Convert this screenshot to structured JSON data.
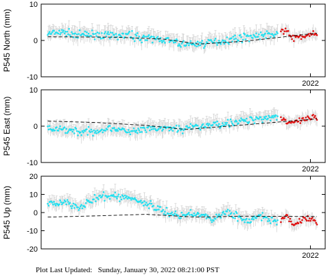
{
  "footer": {
    "label": "Plot Last Updated:",
    "value": "Sunday, January 30, 2022 08:21:00 PST"
  },
  "colors": {
    "data_points": "#22e0f0",
    "recent_points": "#e01010",
    "error_bars": "#d4d4d4",
    "trend_line": "#000000"
  },
  "chart_data": [
    {
      "type": "scatter",
      "ylabel": "P545 North (mm)",
      "ylim": [
        -10,
        10
      ],
      "yticks": [
        -10,
        0,
        10
      ],
      "x_tick_label": "2022",
      "series": [
        {
          "role": "observations",
          "x": [
            2014.0,
            2014.5,
            2015.0,
            2015.5,
            2016.0,
            2016.5,
            2017.0,
            2017.5,
            2018.0,
            2018.5,
            2019.0,
            2019.5,
            2020.0,
            2020.5,
            2021.0
          ],
          "y": [
            1.8,
            2.2,
            1.5,
            1.6,
            1.2,
            1.4,
            0.6,
            0.3,
            -0.9,
            -1.1,
            -0.5,
            0.2,
            0.9,
            1.4,
            2.0
          ]
        },
        {
          "role": "recent",
          "x": [
            2021.1,
            2021.3,
            2021.5,
            2021.8,
            2022.1,
            2022.2
          ],
          "y": [
            2.8,
            2.2,
            0.6,
            1.2,
            1.9,
            1.4
          ]
        },
        {
          "role": "trend",
          "x": [
            2014.0,
            2016.0,
            2017.5,
            2018.6,
            2020.0,
            2022.2
          ],
          "y": [
            1.0,
            0.9,
            0.4,
            -1.0,
            -0.2,
            2.0
          ]
        }
      ]
    },
    {
      "type": "scatter",
      "ylabel": "P545 East (mm)",
      "ylim": [
        -10,
        10
      ],
      "yticks": [
        -10,
        0,
        10
      ],
      "x_tick_label": "2022",
      "series": [
        {
          "role": "observations",
          "x": [
            2014.0,
            2014.5,
            2015.0,
            2015.5,
            2016.0,
            2016.5,
            2017.0,
            2017.5,
            2018.0,
            2018.5,
            2019.0,
            2019.5,
            2020.0,
            2020.5,
            2021.0
          ],
          "y": [
            -1.0,
            -0.8,
            -1.6,
            -1.3,
            -0.4,
            -1.7,
            -0.9,
            -0.6,
            -0.8,
            -0.2,
            0.4,
            0.8,
            1.5,
            2.2,
            2.8
          ]
        },
        {
          "role": "recent",
          "x": [
            2021.1,
            2021.3,
            2021.5,
            2021.8,
            2022.1,
            2022.2
          ],
          "y": [
            2.2,
            1.3,
            0.8,
            1.8,
            2.4,
            2.0
          ]
        },
        {
          "role": "trend",
          "x": [
            2014.0,
            2015.5,
            2017.0,
            2018.2,
            2019.5,
            2022.2
          ],
          "y": [
            1.4,
            1.0,
            0.2,
            -0.9,
            0.0,
            2.0
          ]
        }
      ]
    },
    {
      "type": "scatter",
      "ylabel": "P545 Up (mm)",
      "ylim": [
        -20,
        20
      ],
      "yticks": [
        -20,
        -10,
        0,
        10,
        20
      ],
      "x_tick_label": "2022",
      "series": [
        {
          "role": "observations",
          "x": [
            2014.0,
            2014.5,
            2015.0,
            2015.5,
            2016.0,
            2016.5,
            2017.0,
            2017.5,
            2018.0,
            2018.5,
            2019.0,
            2019.5,
            2020.0,
            2020.5,
            2021.0
          ],
          "y": [
            4.0,
            6.0,
            3.0,
            8.0,
            9.0,
            8.0,
            5.0,
            1.0,
            -2.0,
            0.0,
            -4.0,
            1.0,
            -5.0,
            -2.0,
            -6.0
          ]
        },
        {
          "role": "recent",
          "x": [
            2021.1,
            2021.3,
            2021.5,
            2021.8,
            2022.1,
            2022.2
          ],
          "y": [
            -4.0,
            -2.0,
            -7.0,
            -3.0,
            -4.0,
            -6.0
          ]
        },
        {
          "role": "trend",
          "x": [
            2014.0,
            2015.5,
            2017.0,
            2018.5,
            2020.0,
            2022.2
          ],
          "y": [
            -2.5,
            -1.8,
            -1.0,
            -2.5,
            -2.0,
            -2.2
          ]
        }
      ]
    }
  ]
}
